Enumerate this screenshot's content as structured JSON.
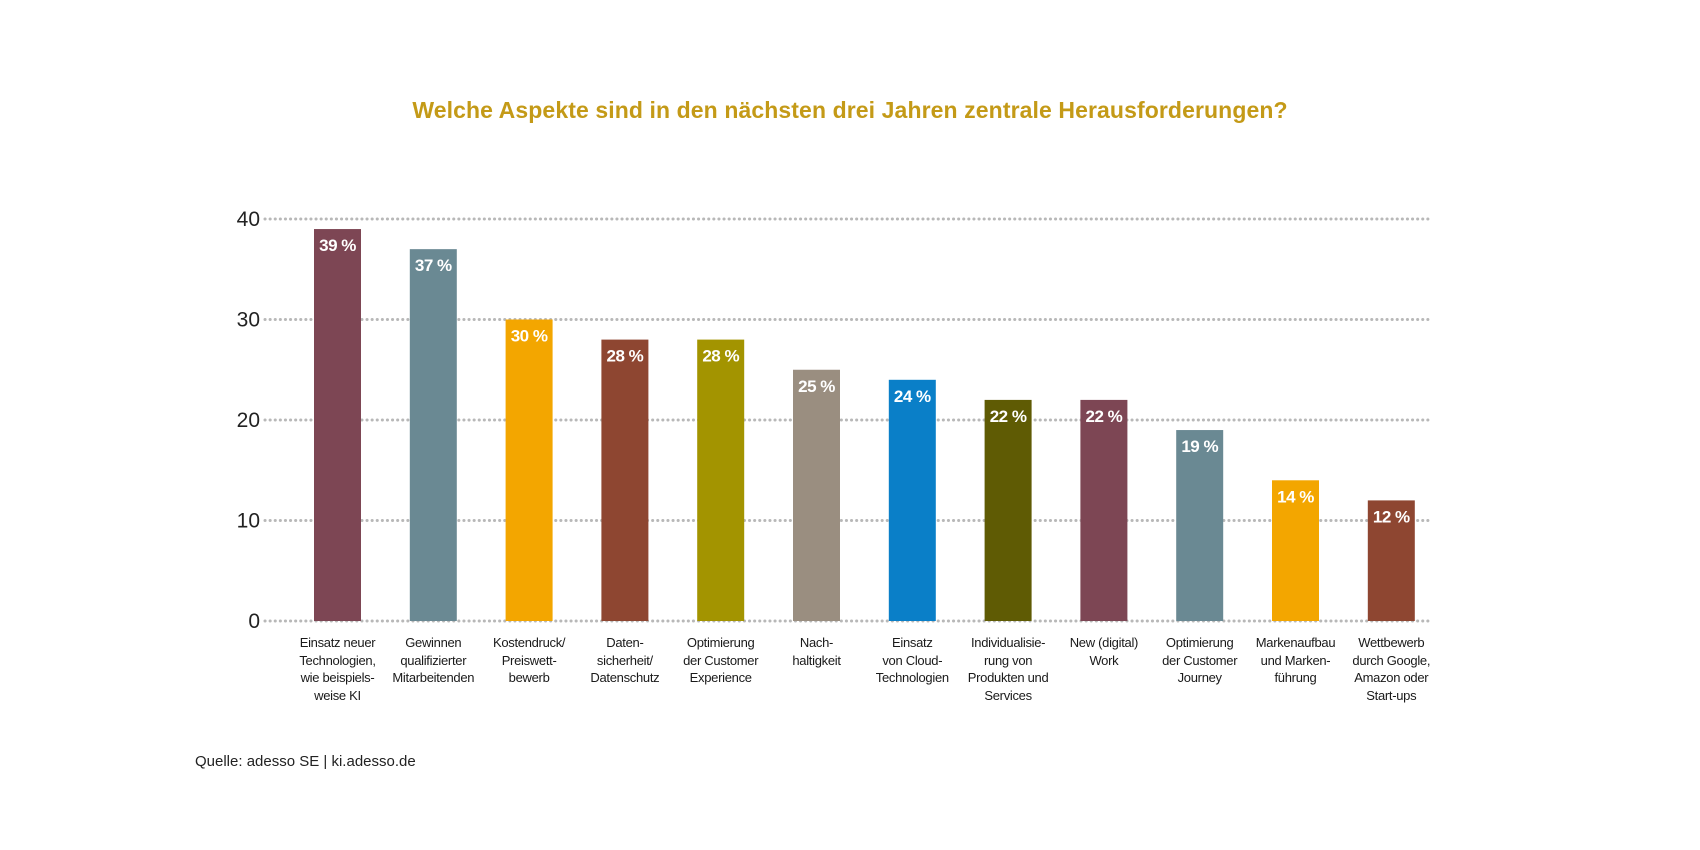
{
  "chart_data": {
    "type": "bar",
    "title": "Welche Aspekte sind in den nächsten drei Jahren zentrale Herausforderungen?",
    "xlabel": "",
    "ylabel": "",
    "ylim": [
      0,
      40
    ],
    "yticks": [
      0,
      10,
      20,
      30,
      40
    ],
    "grid": true,
    "categories": [
      "Einsatz neuer Technologien, wie beispiels-weise KI",
      "Gewinnen qualifizierter Mitarbeitenden",
      "Kostendruck/ Preiswett-bewerb",
      "Daten-sicherheit/ Datenschutz",
      "Optimierung der Customer Experience",
      "Nach-haltigkeit",
      "Einsatz von Cloud-Technologien",
      "Individualisie-rung von Produkten und Services",
      "New (digital) Work",
      "Optimierung der Customer Journey",
      "Markenaufbau und Marken-führung",
      "Wettbewerb durch Google, Amazon oder Start-ups"
    ],
    "category_lines": [
      [
        "Einsatz neuer",
        "Technologien,",
        "wie beispiels-",
        "weise KI"
      ],
      [
        "Gewinnen",
        "qualifizierter",
        "Mitarbeitenden"
      ],
      [
        "Kostendruck/",
        "Preiswett-",
        "bewerb"
      ],
      [
        "Daten-",
        "sicherheit/",
        "Datenschutz"
      ],
      [
        "Optimierung",
        "der Customer",
        "Experience"
      ],
      [
        "Nach-",
        "haltigkeit"
      ],
      [
        "Einsatz",
        "von Cloud-",
        "Technologien"
      ],
      [
        "Individualisie-",
        "rung von",
        "Produkten und",
        "Services"
      ],
      [
        "New (digital)",
        "Work"
      ],
      [
        "Optimierung",
        "der Customer",
        "Journey"
      ],
      [
        "Markenaufbau",
        "und Marken-",
        "führung"
      ],
      [
        "Wettbewerb",
        "durch Google,",
        "Amazon oder",
        "Start-ups"
      ]
    ],
    "values": [
      39,
      37,
      30,
      28,
      28,
      25,
      24,
      22,
      22,
      19,
      14,
      12
    ],
    "value_labels": [
      "39 %",
      "37 %",
      "30 %",
      "28 %",
      "28 %",
      "25 %",
      "24 %",
      "22 %",
      "22 %",
      "19 %",
      "14 %",
      "12 %"
    ],
    "colors": [
      "#7d4654",
      "#6a8993",
      "#f3a600",
      "#8e4631",
      "#a39400",
      "#9a8e80",
      "#0a7fc8",
      "#5f5b04",
      "#7d4654",
      "#6a8993",
      "#f3a600",
      "#8e4631"
    ],
    "grid_color": "#b8b8b8"
  },
  "source": "Quelle: adesso SE | ki.adesso.de"
}
